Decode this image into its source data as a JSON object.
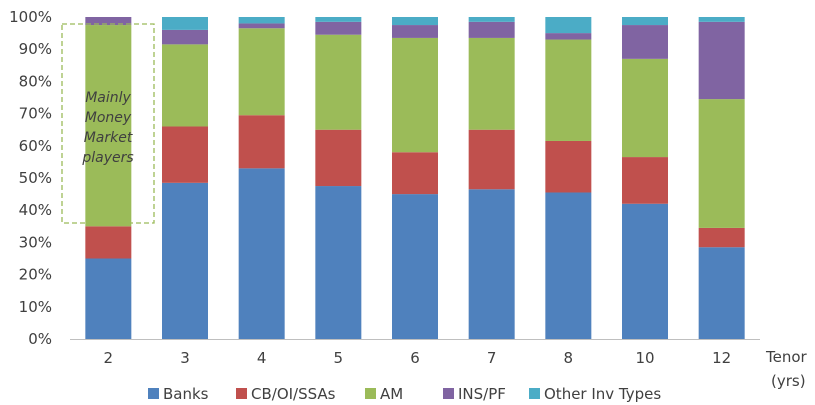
{
  "chart_data": {
    "type": "bar",
    "stacked": true,
    "categories": [
      "2",
      "3",
      "4",
      "5",
      "6",
      "7",
      "8",
      "10",
      "12"
    ],
    "x_axis_label": [
      "Tenor",
      "(yrs)"
    ],
    "ylim": [
      0,
      100
    ],
    "y_ticks": [
      "0%",
      "10%",
      "20%",
      "30%",
      "40%",
      "50%",
      "60%",
      "70%",
      "80%",
      "90%",
      "100%"
    ],
    "grid": false,
    "legend_position": "bottom",
    "series": [
      {
        "name": "Banks",
        "color": "#4f81bd",
        "values": [
          25,
          48.5,
          53,
          47.5,
          45,
          46.5,
          45.5,
          42,
          28.5
        ]
      },
      {
        "name": "CB/OI/SSAs",
        "color": "#c0504d",
        "values": [
          10,
          17.5,
          16.5,
          17.5,
          13,
          18.5,
          16,
          14.5,
          6
        ]
      },
      {
        "name": "AM",
        "color": "#9bbb59",
        "values": [
          62.5,
          25.5,
          27,
          29.5,
          35.5,
          28.5,
          31.5,
          30.5,
          40
        ]
      },
      {
        "name": "INS/PF",
        "color": "#8064a2",
        "values": [
          2.5,
          4.5,
          1.5,
          4,
          4,
          5,
          2,
          10.5,
          24
        ]
      },
      {
        "name": "Other Inv Types",
        "color": "#4bacc6",
        "values": [
          0,
          4,
          2,
          1.5,
          2.5,
          1.5,
          5,
          2.5,
          1.5
        ]
      }
    ],
    "annotation": {
      "lines": [
        "Mainly",
        "Money",
        "Market",
        "players"
      ],
      "border_color": "#9bbb59"
    }
  }
}
